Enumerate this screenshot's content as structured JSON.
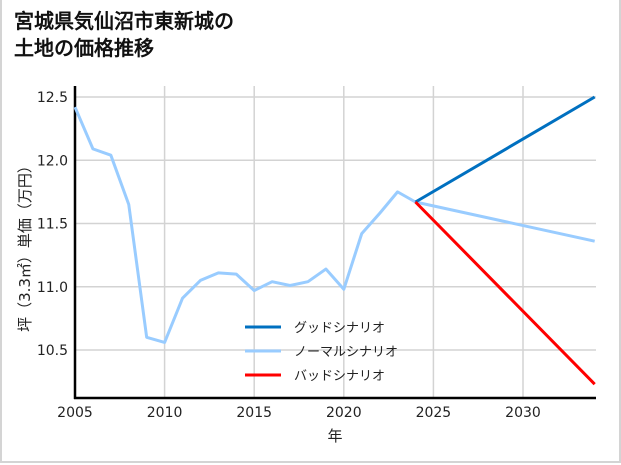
{
  "title_line1": "宮城県気仙沼市東新城の",
  "title_line2": "土地の価格推移",
  "chart_data": {
    "type": "line",
    "title": "宮城県気仙沼市東新城の土地の価格推移",
    "xlabel": "年",
    "ylabel": "坪（3.3㎡）単価（万円）",
    "xlim": [
      2005,
      2034
    ],
    "ylim": [
      10.1,
      12.6
    ],
    "xticks": [
      2005,
      2010,
      2015,
      2020,
      2025,
      2030
    ],
    "yticks": [
      10.5,
      11.0,
      11.5,
      12.0,
      12.5
    ],
    "grid": true,
    "legend_position": "lower center",
    "series": [
      {
        "name": "ノーマルシナリオ",
        "color": "#99ccff",
        "x": [
          2005,
          2006,
          2007,
          2008,
          2009,
          2010,
          2011,
          2012,
          2013,
          2014,
          2015,
          2016,
          2017,
          2018,
          2019,
          2020,
          2021,
          2022,
          2023,
          2024,
          2034
        ],
        "values": [
          12.42,
          12.09,
          12.04,
          11.65,
          10.6,
          10.56,
          10.91,
          11.05,
          11.11,
          11.1,
          10.97,
          11.04,
          11.01,
          11.04,
          11.14,
          10.98,
          11.42,
          11.58,
          11.75,
          11.67,
          11.36
        ]
      },
      {
        "name": "グッドシナリオ",
        "color": "#0070c0",
        "x": [
          2024,
          2034
        ],
        "values": [
          11.67,
          12.5
        ]
      },
      {
        "name": "バッドシナリオ",
        "color": "#ff0000",
        "x": [
          2024,
          2034
        ],
        "values": [
          11.67,
          10.23
        ]
      }
    ]
  },
  "legend": [
    {
      "label": "グッドシナリオ",
      "color": "#0070c0"
    },
    {
      "label": "ノーマルシナリオ",
      "color": "#99ccff"
    },
    {
      "label": "バッドシナリオ",
      "color": "#ff0000"
    }
  ],
  "axis": {
    "xlabel": "年",
    "ylabel": "坪（3.3㎡）単価（万円）",
    "xticks": [
      "2005",
      "2010",
      "2015",
      "2020",
      "2025",
      "2030"
    ],
    "yticks": [
      "12.5",
      "12.0",
      "11.5",
      "11.0",
      "10.5"
    ]
  }
}
